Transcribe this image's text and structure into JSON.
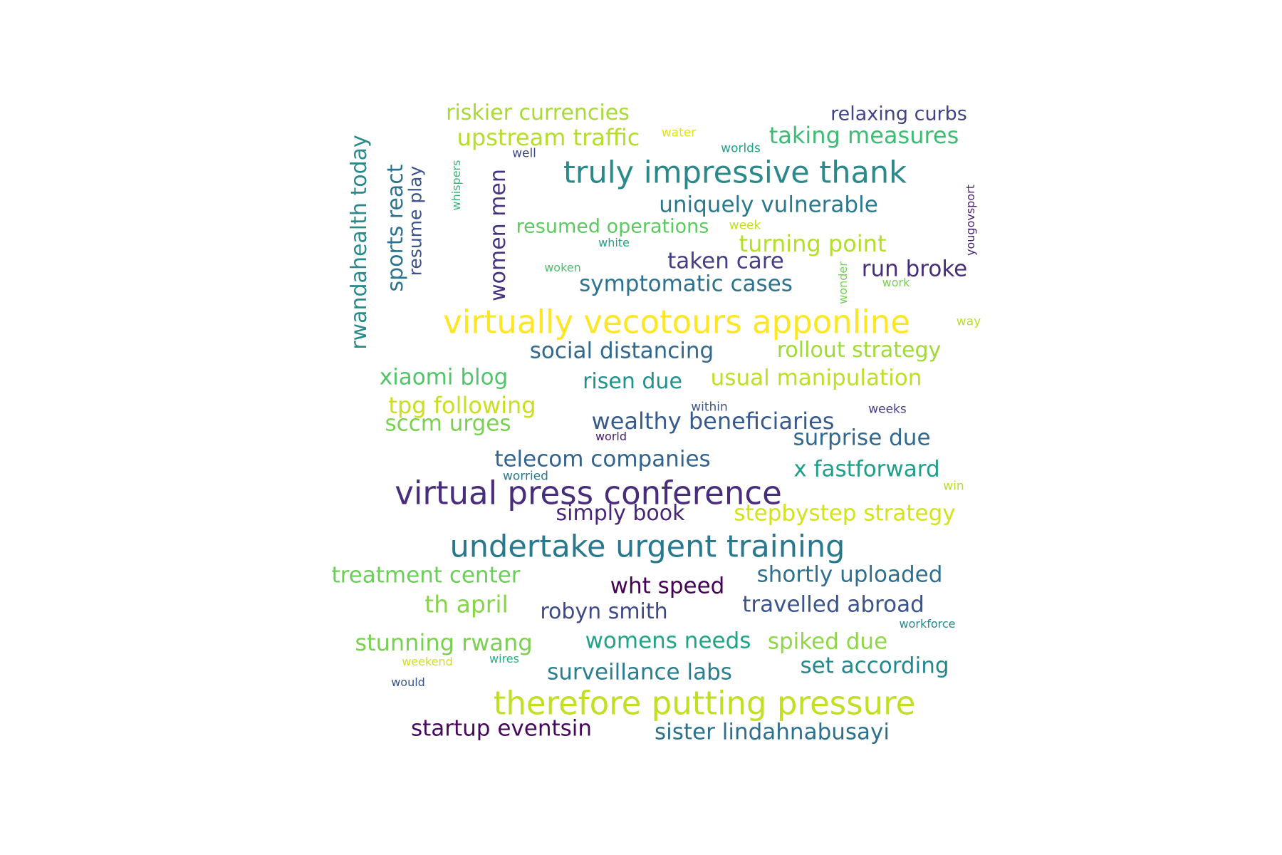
{
  "words": [
    {
      "text": "virtually vecotours apponline",
      "color": "#fde725"
    },
    {
      "text": "virtual press conference",
      "color": "#472d7b"
    },
    {
      "text": "therefore putting pressure",
      "color": "#c2df23"
    },
    {
      "text": "undertake urgent training",
      "color": "#2a788e"
    },
    {
      "text": "truly impressive thank",
      "color": "#2a8a8b"
    },
    {
      "text": "rwandahealth today",
      "color": "#2a8a8b"
    },
    {
      "text": "riskier currencies",
      "color": "#a8db34"
    },
    {
      "text": "relaxing curbs",
      "color": "#414487"
    },
    {
      "text": "upstream traffic",
      "color": "#b5de2b"
    },
    {
      "text": "taking measures",
      "color": "#3fbc73"
    },
    {
      "text": "uniquely vulnerable",
      "color": "#2a788e"
    },
    {
      "text": "sports react",
      "color": "#2c728e"
    },
    {
      "text": "resume play",
      "color": "#3b528b"
    },
    {
      "text": "women men",
      "color": "#46327e"
    },
    {
      "text": "resumed operations",
      "color": "#5ec962"
    },
    {
      "text": "turning point",
      "color": "#b5de2b"
    },
    {
      "text": "taken care",
      "color": "#433e85"
    },
    {
      "text": "run broke",
      "color": "#472d7b"
    },
    {
      "text": "symptomatic cases",
      "color": "#2c728e"
    },
    {
      "text": "social distancing",
      "color": "#31688e"
    },
    {
      "text": "rollout strategy",
      "color": "#a0da39"
    },
    {
      "text": "xiaomi blog",
      "color": "#52c569"
    },
    {
      "text": "risen due",
      "color": "#21918c"
    },
    {
      "text": "usual manipulation",
      "color": "#bddf26"
    },
    {
      "text": "tpg following",
      "color": "#c8e020"
    },
    {
      "text": "sccm urges",
      "color": "#7ad151"
    },
    {
      "text": "wealthy beneficiaries",
      "color": "#38598c"
    },
    {
      "text": "surprise due",
      "color": "#31688e"
    },
    {
      "text": "telecom companies",
      "color": "#33638d"
    },
    {
      "text": "x fastforward",
      "color": "#1f9e89"
    },
    {
      "text": "simply book",
      "color": "#482576"
    },
    {
      "text": "stepbystep strategy",
      "color": "#d2e21b"
    },
    {
      "text": "treatment center",
      "color": "#6ccd5a"
    },
    {
      "text": "shortly uploaded",
      "color": "#2e6f8e"
    },
    {
      "text": "wht speed",
      "color": "#440154"
    },
    {
      "text": "th april",
      "color": "#86d549"
    },
    {
      "text": "robyn smith",
      "color": "#3e4989"
    },
    {
      "text": "travelled abroad",
      "color": "#3b528b"
    },
    {
      "text": "stunning rwang",
      "color": "#7ad151"
    },
    {
      "text": "womens needs",
      "color": "#20a386"
    },
    {
      "text": "spiked due",
      "color": "#8fd744"
    },
    {
      "text": "set according",
      "color": "#23898e"
    },
    {
      "text": "surveillance labs",
      "color": "#287d8e"
    },
    {
      "text": "startup eventsin",
      "color": "#46085c"
    },
    {
      "text": "sister lindahnabusayi",
      "color": "#2d708e"
    },
    {
      "text": "water",
      "color": "#dde318"
    },
    {
      "text": "well",
      "color": "#3e4989"
    },
    {
      "text": "worlds",
      "color": "#1fa188"
    },
    {
      "text": "whispers",
      "color": "#35b779"
    },
    {
      "text": "yougovsport",
      "color": "#481f70"
    },
    {
      "text": "week",
      "color": "#c2df23"
    },
    {
      "text": "white",
      "color": "#20a386"
    },
    {
      "text": "woken",
      "color": "#4ac16d"
    },
    {
      "text": "wonder",
      "color": "#73d056"
    },
    {
      "text": "work",
      "color": "#7ad151"
    },
    {
      "text": "way",
      "color": "#b8de29"
    },
    {
      "text": "within",
      "color": "#3b528b"
    },
    {
      "text": "weeks",
      "color": "#424086"
    },
    {
      "text": "world",
      "color": "#481a6c"
    },
    {
      "text": "worried",
      "color": "#2a788e"
    },
    {
      "text": "win",
      "color": "#b5de2b"
    },
    {
      "text": "workforce",
      "color": "#238a8d"
    },
    {
      "text": "weekend",
      "color": "#d0e11c"
    },
    {
      "text": "wires",
      "color": "#2ab07f"
    },
    {
      "text": "would",
      "color": "#3b528b"
    }
  ]
}
